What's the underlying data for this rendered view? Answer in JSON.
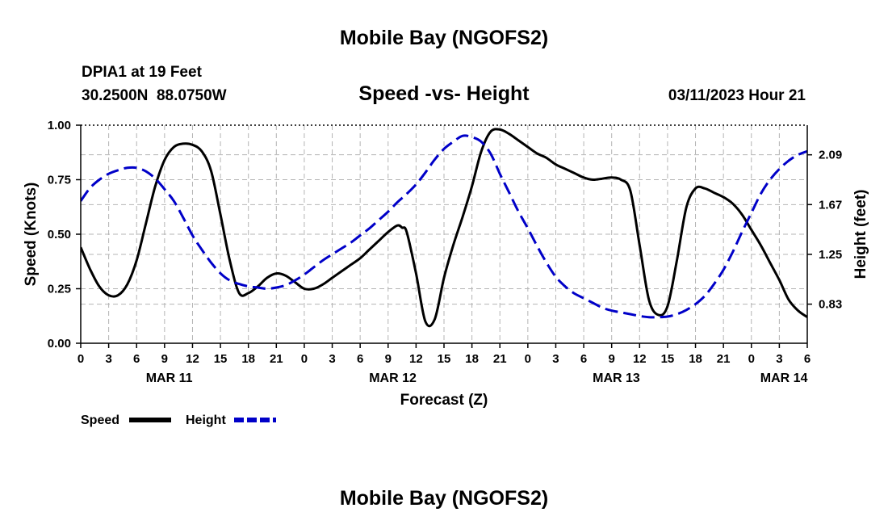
{
  "page": {
    "title": "Mobile Bay (NGOFS2)",
    "footer_title": "Mobile Bay (NGOFS2)"
  },
  "header": {
    "station": "DPIA1 at 19 Feet",
    "coords": "30.2500N  88.0750W",
    "datetime": "03/11/2023 Hour 21"
  },
  "colors": {
    "speed": "#000000",
    "height": "#0000c8",
    "grid": "#b4b4b4",
    "background": "#ffffff"
  },
  "chart_data": {
    "type": "line",
    "title": "Speed -vs- Height",
    "xlabel": "Forecast (Z)",
    "ylabel": "Speed (Knots)",
    "y2label": "Height (feet)",
    "xlim": [
      0,
      78
    ],
    "ylim": [
      0,
      1
    ],
    "y2lim": [
      0.5,
      2.34
    ],
    "x_ticks": [
      0,
      3,
      6,
      9,
      12,
      15,
      18,
      21,
      24,
      27,
      30,
      33,
      36,
      39,
      42,
      45,
      48,
      51,
      54,
      57,
      60,
      63,
      66,
      69,
      72,
      75,
      78
    ],
    "x_tick_labels": [
      "0",
      "3",
      "6",
      "9",
      "12",
      "15",
      "18",
      "21",
      "0",
      "3",
      "6",
      "9",
      "12",
      "15",
      "18",
      "21",
      "0",
      "3",
      "6",
      "9",
      "12",
      "15",
      "18",
      "21",
      "0",
      "3",
      "6"
    ],
    "y_ticks": [
      0,
      0.25,
      0.5,
      0.75,
      1
    ],
    "y_tick_labels": [
      "0.00",
      "0.25",
      "0.50",
      "0.75",
      "1.00"
    ],
    "y2_ticks": [
      0.83,
      1.25,
      1.67,
      2.09
    ],
    "y2_tick_labels": [
      "0.83",
      "1.25",
      "1.67",
      "2.09"
    ],
    "day_labels": [
      {
        "x": 9.5,
        "label": "MAR 11"
      },
      {
        "x": 33.5,
        "label": "MAR 12"
      },
      {
        "x": 57.5,
        "label": "MAR 13"
      },
      {
        "x": 75.5,
        "label": "MAR 14"
      }
    ],
    "grid": true,
    "legend": {
      "position": "bottom-left",
      "entries": [
        {
          "name": "Speed",
          "series": "speed"
        },
        {
          "name": "Height",
          "series": "height"
        }
      ]
    },
    "series": [
      {
        "name": "Speed",
        "key": "speed",
        "axis": "left",
        "style": "solid",
        "x": [
          0,
          1,
          2,
          3,
          4,
          5,
          6,
          7,
          8,
          9,
          10,
          11,
          12,
          13,
          14,
          15,
          16,
          17,
          18,
          19,
          20,
          21,
          22,
          23,
          24,
          25,
          26,
          27,
          28,
          29,
          30,
          31,
          32,
          33,
          34,
          34.5,
          35,
          36,
          37,
          38,
          39,
          40,
          41,
          42,
          43,
          44,
          45,
          46,
          47,
          48,
          49,
          50,
          51,
          52,
          53,
          54,
          55,
          56,
          57,
          58,
          59,
          60,
          61,
          62,
          63,
          64,
          65,
          66,
          67,
          68,
          69,
          70,
          71,
          72,
          73,
          74,
          75,
          76,
          77,
          78
        ],
        "values": [
          0.44,
          0.34,
          0.26,
          0.22,
          0.22,
          0.27,
          0.38,
          0.55,
          0.72,
          0.84,
          0.9,
          0.915,
          0.91,
          0.88,
          0.79,
          0.59,
          0.38,
          0.23,
          0.23,
          0.26,
          0.3,
          0.32,
          0.31,
          0.28,
          0.25,
          0.25,
          0.27,
          0.3,
          0.33,
          0.36,
          0.39,
          0.43,
          0.47,
          0.51,
          0.54,
          0.53,
          0.51,
          0.32,
          0.1,
          0.11,
          0.3,
          0.45,
          0.58,
          0.72,
          0.88,
          0.97,
          0.98,
          0.96,
          0.93,
          0.9,
          0.87,
          0.85,
          0.82,
          0.8,
          0.78,
          0.76,
          0.75,
          0.755,
          0.76,
          0.75,
          0.7,
          0.45,
          0.2,
          0.13,
          0.17,
          0.38,
          0.62,
          0.71,
          0.71,
          0.69,
          0.67,
          0.64,
          0.59,
          0.52,
          0.45,
          0.37,
          0.29,
          0.2,
          0.15,
          0.12
        ]
      },
      {
        "name": "Height",
        "key": "height",
        "axis": "right",
        "style": "dashed",
        "x": [
          0,
          1,
          2,
          3,
          4,
          5,
          6,
          7,
          8,
          9,
          10,
          11,
          12,
          13,
          14,
          15,
          16,
          17,
          18,
          19,
          20,
          21,
          22,
          23,
          24,
          25,
          26,
          27,
          28,
          29,
          30,
          31,
          32,
          33,
          34,
          35,
          36,
          37,
          38,
          39,
          40,
          41,
          42,
          43,
          44,
          45,
          46,
          47,
          48,
          49,
          50,
          51,
          52,
          53,
          54,
          55,
          56,
          57,
          58,
          59,
          60,
          61,
          62,
          63,
          64,
          65,
          66,
          67,
          68,
          69,
          70,
          71,
          72,
          73,
          74,
          75,
          76,
          77,
          78
        ],
        "values": [
          1.7,
          1.81,
          1.88,
          1.93,
          1.96,
          1.98,
          1.98,
          1.95,
          1.89,
          1.8,
          1.7,
          1.56,
          1.41,
          1.29,
          1.18,
          1.09,
          1.03,
          1.0,
          0.98,
          0.97,
          0.96,
          0.97,
          0.99,
          1.03,
          1.08,
          1.14,
          1.2,
          1.25,
          1.3,
          1.35,
          1.41,
          1.47,
          1.54,
          1.61,
          1.69,
          1.76,
          1.84,
          1.94,
          2.05,
          2.14,
          2.2,
          2.25,
          2.24,
          2.2,
          2.1,
          1.93,
          1.77,
          1.61,
          1.47,
          1.32,
          1.18,
          1.06,
          0.98,
          0.92,
          0.88,
          0.84,
          0.8,
          0.775,
          0.76,
          0.745,
          0.73,
          0.72,
          0.72,
          0.725,
          0.745,
          0.78,
          0.83,
          0.9,
          1.0,
          1.12,
          1.27,
          1.44,
          1.6,
          1.76,
          1.88,
          1.97,
          2.04,
          2.09,
          2.12
        ]
      }
    ]
  }
}
